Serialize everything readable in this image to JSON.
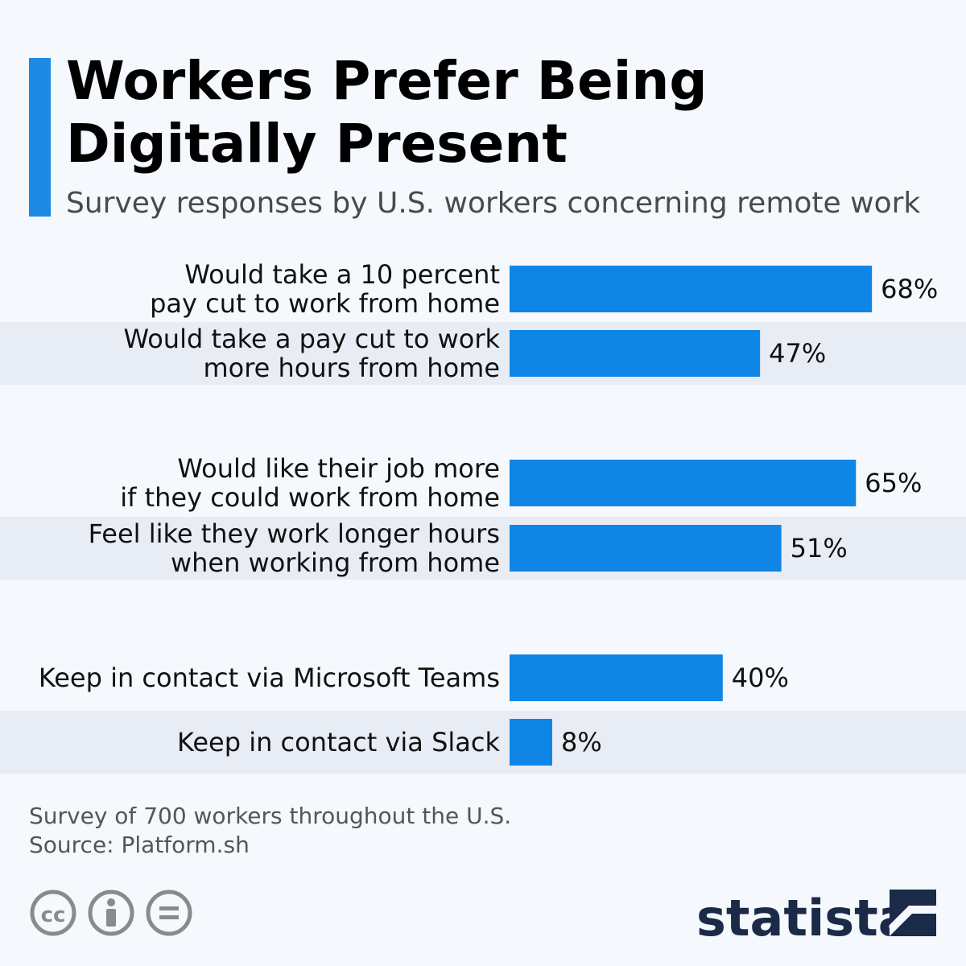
{
  "header": {
    "title": "Workers Prefer Being Digitally Present",
    "title_lines": [
      "Workers Prefer Being",
      "Digitally Present"
    ],
    "subtitle": "Survey responses by U.S. workers concerning remote work"
  },
  "chart_data": {
    "type": "bar",
    "orientation": "horizontal",
    "title": "Workers Prefer Being Digitally Present",
    "subtitle": "Survey responses by U.S. workers concerning remote work",
    "categories": [
      [
        "Would take a 10 percent",
        "pay cut to work from home"
      ],
      [
        "Would take a pay cut to work",
        "more hours from home"
      ],
      [
        "Would like their job more",
        "if they could work from home"
      ],
      [
        "Feel like they work longer hours",
        "when working from home"
      ],
      [
        "Keep in contact via Microsoft Teams"
      ],
      [
        "Keep in contact via Slack"
      ]
    ],
    "values": [
      68,
      47,
      65,
      51,
      40,
      8
    ],
    "value_labels": [
      "68%",
      "47%",
      "65%",
      "51%",
      "40%",
      "8%"
    ],
    "unit": "%",
    "xlim": [
      0,
      100
    ],
    "groups": [
      [
        0,
        1
      ],
      [
        2,
        3
      ],
      [
        4,
        5
      ]
    ],
    "bar_color": "#0f86e6",
    "stripe_color": "#e8edf5"
  },
  "footer": {
    "note": "Survey of 700 workers throughout the U.S.",
    "source": "Source: Platform.sh",
    "brand": "statista",
    "license_icons": [
      "cc-icon",
      "attribution-icon",
      "no-derivatives-icon"
    ]
  },
  "colors": {
    "accent": "#1e88e5",
    "background": "#f5f8fc",
    "brand": "#1a2a47"
  }
}
